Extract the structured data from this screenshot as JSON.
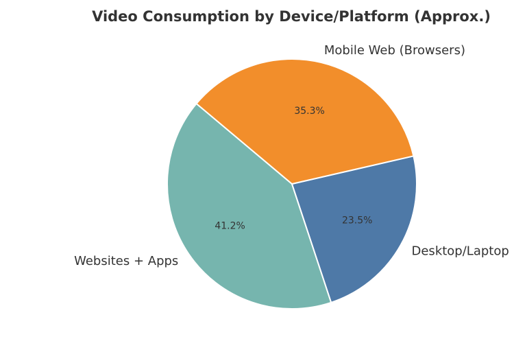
{
  "chart_data": {
    "type": "pie",
    "title": "Video Consumption by Device/Platform (Approx.)",
    "start_angle_deg": 140,
    "direction": "counterclockwise",
    "slices": [
      {
        "label": "Websites + Apps",
        "value": 41.2,
        "pct_label": "41.2%",
        "color": "#76b5ae"
      },
      {
        "label": "Desktop/Laptop (Web)",
        "value": 23.5,
        "pct_label": "23.5%",
        "color": "#4e79a7"
      },
      {
        "label": "Mobile Web (Browsers)",
        "value": 35.3,
        "pct_label": "35.3%",
        "color": "#f28e2b"
      }
    ]
  }
}
